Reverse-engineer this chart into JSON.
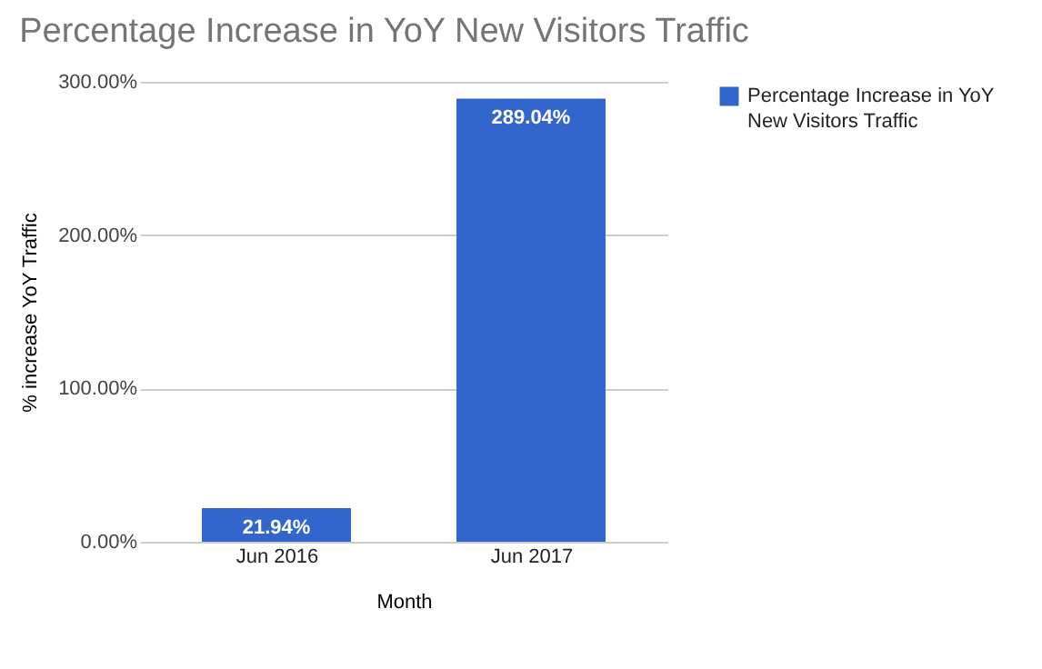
{
  "chart_data": {
    "type": "bar",
    "title": "Percentage Increase in YoY New Visitors Traffic",
    "xlabel": "Month",
    "ylabel": "% increase YoY Traffic",
    "categories": [
      "Jun 2016",
      "Jun 2017"
    ],
    "series": [
      {
        "name": "Percentage Increase in YoY New Visitors Traffic",
        "color": "#3366cc",
        "values": [
          21.94,
          289.04
        ]
      }
    ],
    "value_labels": [
      "21.94%",
      "289.04%"
    ],
    "ylim": [
      0,
      300
    ],
    "yticks": [
      {
        "value": 0,
        "label": "0.00%"
      },
      {
        "value": 100,
        "label": "100.00%"
      },
      {
        "value": 200,
        "label": "200.00%"
      },
      {
        "value": 300,
        "label": "300.00%"
      }
    ],
    "grid": "y",
    "legend": "top right"
  }
}
